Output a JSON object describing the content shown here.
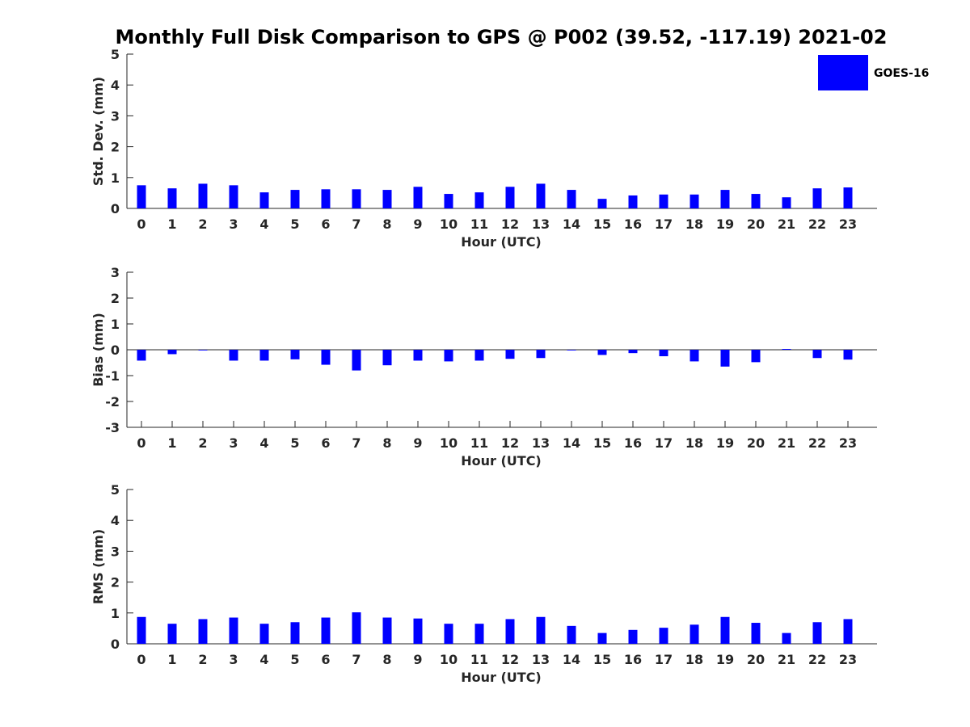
{
  "chart_title": "Monthly Full Disk Comparison to GPS @ P002 (39.52, -117.19) 2021-02",
  "colors": {
    "series": "#0000ff",
    "axis": "#262626"
  },
  "chart_data": [
    {
      "type": "bar",
      "ylabel": "Std. Dev. (mm)",
      "xlabel": "Hour (UTC)",
      "ylim": [
        0,
        5
      ],
      "yticks": [
        0,
        1,
        2,
        3,
        4,
        5
      ],
      "categories": [
        "0",
        "1",
        "2",
        "3",
        "4",
        "5",
        "6",
        "7",
        "8",
        "9",
        "10",
        "11",
        "12",
        "13",
        "14",
        "15",
        "16",
        "17",
        "18",
        "19",
        "20",
        "21",
        "22",
        "23"
      ],
      "legend": {
        "entries": [
          "GOES-16"
        ],
        "placement": "top-right"
      },
      "series": [
        {
          "name": "GOES-16",
          "values": [
            0.75,
            0.65,
            0.8,
            0.75,
            0.52,
            0.6,
            0.62,
            0.62,
            0.6,
            0.7,
            0.47,
            0.52,
            0.7,
            0.8,
            0.6,
            0.31,
            0.42,
            0.45,
            0.45,
            0.6,
            0.47,
            0.36,
            0.65,
            0.68
          ]
        }
      ]
    },
    {
      "type": "bar",
      "ylabel": "Bias (mm)",
      "xlabel": "Hour (UTC)",
      "ylim": [
        -3,
        3
      ],
      "yticks": [
        -3,
        -2,
        -1,
        0,
        1,
        2,
        3
      ],
      "categories": [
        "0",
        "1",
        "2",
        "3",
        "4",
        "5",
        "6",
        "7",
        "8",
        "9",
        "10",
        "11",
        "12",
        "13",
        "14",
        "15",
        "16",
        "17",
        "18",
        "19",
        "20",
        "21",
        "22",
        "23"
      ],
      "series": [
        {
          "name": "GOES-16",
          "values": [
            -0.42,
            -0.17,
            -0.02,
            -0.42,
            -0.42,
            -0.37,
            -0.58,
            -0.8,
            -0.6,
            -0.42,
            -0.45,
            -0.42,
            -0.35,
            -0.32,
            -0.02,
            -0.2,
            -0.13,
            -0.25,
            -0.45,
            -0.65,
            -0.48,
            0.03,
            -0.32,
            -0.38
          ]
        }
      ]
    },
    {
      "type": "bar",
      "ylabel": "RMS (mm)",
      "xlabel": "Hour (UTC)",
      "ylim": [
        0,
        5
      ],
      "yticks": [
        0,
        1,
        2,
        3,
        4,
        5
      ],
      "categories": [
        "0",
        "1",
        "2",
        "3",
        "4",
        "5",
        "6",
        "7",
        "8",
        "9",
        "10",
        "11",
        "12",
        "13",
        "14",
        "15",
        "16",
        "17",
        "18",
        "19",
        "20",
        "21",
        "22",
        "23"
      ],
      "series": [
        {
          "name": "GOES-16",
          "values": [
            0.87,
            0.65,
            0.8,
            0.85,
            0.65,
            0.7,
            0.85,
            1.02,
            0.85,
            0.82,
            0.65,
            0.65,
            0.8,
            0.87,
            0.58,
            0.35,
            0.45,
            0.52,
            0.62,
            0.87,
            0.68,
            0.35,
            0.7,
            0.8
          ]
        }
      ]
    }
  ]
}
